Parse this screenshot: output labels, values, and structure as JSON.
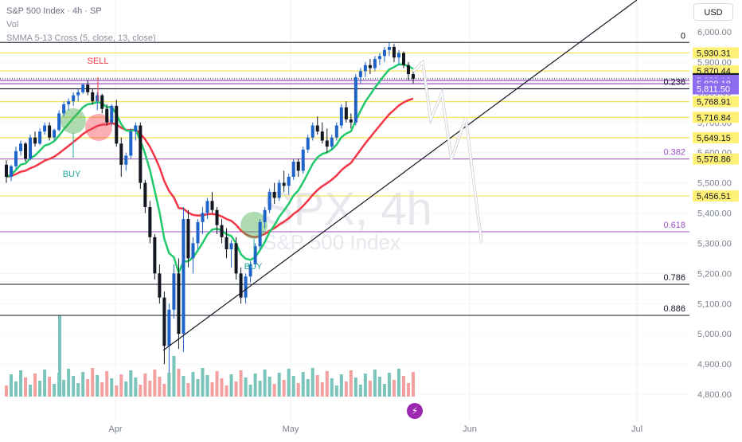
{
  "header": {
    "symbol_line": "S&P 500 Index · 4h · SP",
    "vol_label": "Vol",
    "indicator_label": "SMMA 5-13 Cross (5, close, 13, close)"
  },
  "currency_button": "USD",
  "watermark": {
    "ticker": "SPX, 4h",
    "name": "S&P 500 Index"
  },
  "lightning_icon": "lightning-icon",
  "colors": {
    "up": "#26a69a",
    "down": "#131722",
    "up_body": "#1e63c8",
    "fast_ma": "#21c96a",
    "slow_ma": "#f23645",
    "horizontal_yellow": "#f5e05a",
    "horizontal_purple": "#9c4fc8",
    "vol_up": "#7bc4bb",
    "vol_down": "#f2a0a0"
  },
  "chart_data": {
    "type": "candlestick",
    "y_axis": {
      "range": [
        4760,
        6060
      ],
      "ticks": [
        "6,000.00",
        "5,900.00",
        "5,800.00",
        "5,700.00",
        "5,600.00",
        "5,500.00",
        "5,400.00",
        "5,300.00",
        "5,200.00",
        "5,100.00",
        "5,000.00",
        "4,900.00",
        "4,800.00"
      ],
      "tick_values": [
        6000,
        5900,
        5800,
        5700,
        5600,
        5500,
        5400,
        5300,
        5200,
        5100,
        5000,
        4900,
        4800
      ]
    },
    "x_axis": {
      "labels": [
        "Apr",
        "May",
        "Jun",
        "Jul"
      ]
    },
    "price_labels": [
      {
        "text": "5,930.31",
        "value": 5930.31,
        "style": "yellow"
      },
      {
        "text": "5,870.44",
        "value": 5870.44,
        "style": "yellow"
      },
      {
        "text": "5,844.62",
        "value": 5844.62,
        "style": "current"
      },
      {
        "text": "5,839.16",
        "value": 5839.16,
        "style": "purple"
      },
      {
        "text": "5,828.18",
        "value": 5828.18,
        "style": "purple"
      },
      {
        "text": "5,811.50",
        "value": 5811.5,
        "style": "purple"
      },
      {
        "text": "5,768.91",
        "value": 5768.91,
        "style": "yellow"
      },
      {
        "text": "5,716.84",
        "value": 5716.84,
        "style": "yellow"
      },
      {
        "text": "5,649.15",
        "value": 5649.15,
        "style": "yellow"
      },
      {
        "text": "5,578.86",
        "value": 5578.86,
        "style": "yellow"
      },
      {
        "text": "5,456.51",
        "value": 5456.51,
        "style": "yellow"
      }
    ],
    "fib_levels": [
      {
        "label": "0",
        "value": 5965,
        "color": "#131722"
      },
      {
        "label": "0.236",
        "value": 5811.5,
        "color": "#131722"
      },
      {
        "label": "0.382",
        "value": 5578.86,
        "color": "#9c4fc8"
      },
      {
        "label": "0.618",
        "value": 5338,
        "color": "#9c4fc8"
      },
      {
        "label": "0.786",
        "value": 5164,
        "color": "#131722"
      },
      {
        "label": "0.886",
        "value": 5061,
        "color": "#131722"
      }
    ],
    "annotations": [
      {
        "text": "SELL",
        "color": "#f23645"
      },
      {
        "text": "BUY",
        "color": "#26a69a"
      },
      {
        "text": "BUY",
        "color": "#26a69a"
      }
    ],
    "trendline": {
      "from": [
        205,
        4940
      ],
      "to": [
        800,
        6060
      ]
    },
    "projection": [
      [
        519,
        5880
      ],
      [
        531,
        5900
      ],
      [
        541,
        5780
      ],
      [
        555,
        5850
      ],
      [
        567,
        5600
      ],
      [
        585,
        5780
      ],
      [
        605,
        5305
      ]
    ],
    "candles": [
      [
        5560,
        5575,
        5500,
        5520
      ],
      [
        5520,
        5560,
        5505,
        5555
      ],
      [
        5555,
        5620,
        5545,
        5605
      ],
      [
        5605,
        5640,
        5590,
        5630
      ],
      [
        5630,
        5635,
        5570,
        5580
      ],
      [
        5580,
        5660,
        5575,
        5650
      ],
      [
        5650,
        5670,
        5620,
        5630
      ],
      [
        5630,
        5680,
        5625,
        5670
      ],
      [
        5670,
        5700,
        5660,
        5690
      ],
      [
        5690,
        5700,
        5640,
        5650
      ],
      [
        5650,
        5680,
        5640,
        5675
      ],
      [
        5675,
        5740,
        5670,
        5730
      ],
      [
        5730,
        5770,
        5720,
        5760
      ],
      [
        5760,
        5780,
        5740,
        5770
      ],
      [
        5770,
        5800,
        5755,
        5790
      ],
      [
        5790,
        5810,
        5770,
        5800
      ],
      [
        5800,
        5830,
        5795,
        5825
      ],
      [
        5825,
        5840,
        5790,
        5800
      ],
      [
        5800,
        5810,
        5760,
        5770
      ],
      [
        5770,
        5800,
        5740,
        5790
      ],
      [
        5790,
        5795,
        5730,
        5745
      ],
      [
        5745,
        5760,
        5690,
        5700
      ],
      [
        5700,
        5760,
        5690,
        5755
      ],
      [
        5755,
        5775,
        5620,
        5630
      ],
      [
        5630,
        5650,
        5520,
        5560
      ],
      [
        5560,
        5600,
        5540,
        5590
      ],
      [
        5590,
        5680,
        5580,
        5670
      ],
      [
        5670,
        5700,
        5640,
        5690
      ],
      [
        5690,
        5700,
        5480,
        5500
      ],
      [
        5500,
        5510,
        5400,
        5420
      ],
      [
        5420,
        5440,
        5300,
        5320
      ],
      [
        5320,
        5330,
        5180,
        5200
      ],
      [
        5200,
        5230,
        5100,
        5120
      ],
      [
        5120,
        5140,
        4900,
        4960
      ],
      [
        4960,
        5100,
        4870,
        5080
      ],
      [
        5080,
        5230,
        5050,
        5200
      ],
      [
        5200,
        5250,
        4950,
        5000
      ],
      [
        5000,
        5420,
        4940,
        5380
      ],
      [
        5380,
        5410,
        5220,
        5250
      ],
      [
        5250,
        5320,
        5200,
        5300
      ],
      [
        5300,
        5380,
        5280,
        5370
      ],
      [
        5370,
        5420,
        5330,
        5400
      ],
      [
        5400,
        5450,
        5380,
        5440
      ],
      [
        5440,
        5470,
        5400,
        5410
      ],
      [
        5410,
        5420,
        5330,
        5360
      ],
      [
        5360,
        5380,
        5300,
        5320
      ],
      [
        5320,
        5350,
        5250,
        5280
      ],
      [
        5280,
        5310,
        5220,
        5300
      ],
      [
        5300,
        5320,
        5180,
        5200
      ],
      [
        5200,
        5220,
        5100,
        5120
      ],
      [
        5120,
        5200,
        5100,
        5190
      ],
      [
        5190,
        5240,
        5170,
        5230
      ],
      [
        5230,
        5300,
        5220,
        5290
      ],
      [
        5290,
        5380,
        5280,
        5370
      ],
      [
        5370,
        5420,
        5350,
        5410
      ],
      [
        5410,
        5480,
        5400,
        5470
      ],
      [
        5470,
        5500,
        5430,
        5450
      ],
      [
        5450,
        5510,
        5440,
        5500
      ],
      [
        5500,
        5540,
        5470,
        5490
      ],
      [
        5490,
        5530,
        5460,
        5520
      ],
      [
        5520,
        5580,
        5510,
        5570
      ],
      [
        5570,
        5580,
        5520,
        5540
      ],
      [
        5540,
        5620,
        5530,
        5610
      ],
      [
        5610,
        5660,
        5600,
        5650
      ],
      [
        5650,
        5700,
        5640,
        5690
      ],
      [
        5690,
        5720,
        5660,
        5670
      ],
      [
        5670,
        5700,
        5630,
        5640
      ],
      [
        5640,
        5680,
        5600,
        5620
      ],
      [
        5620,
        5660,
        5610,
        5650
      ],
      [
        5650,
        5700,
        5640,
        5690
      ],
      [
        5690,
        5760,
        5680,
        5750
      ],
      [
        5750,
        5770,
        5700,
        5710
      ],
      [
        5710,
        5730,
        5680,
        5700
      ],
      [
        5700,
        5860,
        5690,
        5850
      ],
      [
        5850,
        5880,
        5830,
        5870
      ],
      [
        5870,
        5900,
        5850,
        5890
      ],
      [
        5890,
        5910,
        5860,
        5880
      ],
      [
        5880,
        5920,
        5870,
        5910
      ],
      [
        5910,
        5930,
        5890,
        5920
      ],
      [
        5920,
        5950,
        5900,
        5940
      ],
      [
        5940,
        5965,
        5920,
        5950
      ],
      [
        5950,
        5960,
        5900,
        5915
      ],
      [
        5915,
        5940,
        5890,
        5930
      ],
      [
        5930,
        5935,
        5880,
        5890
      ],
      [
        5890,
        5900,
        5840,
        5860
      ],
      [
        5860,
        5870,
        5830,
        5845
      ]
    ]
  }
}
